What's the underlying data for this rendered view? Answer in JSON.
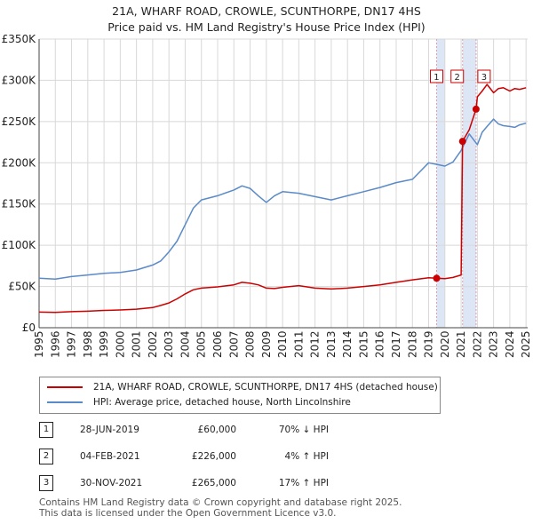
{
  "title_line1": "21A, WHARF ROAD, CROWLE, SCUNTHORPE, DN17 4HS",
  "title_line2": "Price paid vs. HM Land Registry's House Price Index (HPI)",
  "chart_data": {
    "type": "line",
    "xlim": [
      1995,
      2025.1
    ],
    "ylim": [
      0,
      350000
    ],
    "x_ticks": [
      1995,
      1996,
      1997,
      1998,
      1999,
      2000,
      2001,
      2002,
      2003,
      2004,
      2005,
      2006,
      2007,
      2008,
      2009,
      2010,
      2011,
      2012,
      2013,
      2014,
      2015,
      2016,
      2017,
      2018,
      2019,
      2020,
      2021,
      2022,
      2023,
      2024,
      2025
    ],
    "y_ticks": [
      0,
      50000,
      100000,
      150000,
      200000,
      250000,
      300000,
      350000
    ],
    "y_tick_labels": [
      "£0",
      "£50K",
      "£100K",
      "£150K",
      "£200K",
      "£250K",
      "£300K",
      "£350K"
    ],
    "colors": {
      "property": "#cc0000",
      "hpi": "#5a8ac8",
      "shade": "#dde6f5",
      "marker_line": "#e0a0a8"
    },
    "shaded_periods": [
      [
        2019.49,
        2020.0
      ],
      [
        2021.09,
        2021.92
      ]
    ],
    "series": [
      {
        "name": "21A, WHARF ROAD, CROWLE, SCUNTHORPE, DN17 4HS (detached house)",
        "color": "#cc0000",
        "x": [
          1995.0,
          1996.0,
          1997.0,
          1998.0,
          1999.0,
          2000.0,
          2001.0,
          2002.0,
          2002.5,
          2003.0,
          2003.5,
          2004.0,
          2004.5,
          2005.0,
          2006.0,
          2007.0,
          2007.5,
          2008.0,
          2008.5,
          2009.0,
          2009.5,
          2010.0,
          2011.0,
          2012.0,
          2013.0,
          2014.0,
          2015.0,
          2016.0,
          2017.0,
          2018.0,
          2019.0,
          2019.49,
          2020.0,
          2020.5,
          2021.0,
          2021.09,
          2021.5,
          2021.92,
          2022.0,
          2022.3,
          2022.6,
          2023.0,
          2023.3,
          2023.6,
          2024.0,
          2024.3,
          2024.6,
          2025.0
        ],
        "y": [
          19000,
          18500,
          19500,
          20000,
          21000,
          21500,
          22500,
          24500,
          27000,
          30000,
          35000,
          41000,
          46000,
          48000,
          49500,
          52000,
          55000,
          54000,
          52000,
          48000,
          47500,
          49000,
          51000,
          48000,
          47000,
          48000,
          50000,
          52000,
          55000,
          58000,
          60500,
          60000,
          59500,
          61000,
          64000,
          226000,
          240000,
          265000,
          280000,
          287000,
          295000,
          285000,
          290000,
          291000,
          287000,
          290000,
          289000,
          291000
        ]
      },
      {
        "name": "HPI: Average price, detached house, North Lincolnshire",
        "color": "#5a8ac8",
        "x": [
          1995.0,
          1996.0,
          1997.0,
          1998.0,
          1999.0,
          2000.0,
          2001.0,
          2002.0,
          2002.5,
          2003.0,
          2003.5,
          2004.0,
          2004.5,
          2005.0,
          2006.0,
          2007.0,
          2007.5,
          2008.0,
          2008.5,
          2009.0,
          2009.5,
          2010.0,
          2011.0,
          2012.0,
          2013.0,
          2014.0,
          2015.0,
          2016.0,
          2017.0,
          2018.0,
          2018.5,
          2019.0,
          2019.5,
          2020.0,
          2020.5,
          2021.0,
          2021.5,
          2022.0,
          2022.3,
          2022.6,
          2023.0,
          2023.3,
          2023.6,
          2024.0,
          2024.3,
          2024.6,
          2025.0
        ],
        "y": [
          60000,
          59000,
          62000,
          64000,
          66000,
          67000,
          70000,
          76000,
          81000,
          92000,
          105000,
          125000,
          145000,
          155000,
          160000,
          167000,
          172000,
          169000,
          160000,
          152000,
          160000,
          165000,
          163000,
          159000,
          155000,
          160000,
          165000,
          170000,
          176000,
          180000,
          190000,
          200000,
          198000,
          196000,
          201000,
          215000,
          235000,
          222000,
          237000,
          244000,
          253000,
          247000,
          245000,
          244000,
          243000,
          246000,
          248000
        ]
      }
    ],
    "sale_markers": [
      {
        "label": "1",
        "x": 2019.49,
        "y": 60000
      },
      {
        "label": "2",
        "x": 2021.09,
        "y": 226000
      },
      {
        "label": "3",
        "x": 2021.92,
        "y": 265000
      }
    ]
  },
  "legend": {
    "property_label": "21A, WHARF ROAD, CROWLE, SCUNTHORPE, DN17 4HS (detached house)",
    "hpi_label": "HPI: Average price, detached house, North Lincolnshire"
  },
  "sales": [
    {
      "num": "1",
      "date": "28-JUN-2019",
      "price": "£60,000",
      "hpi": "70% ↓ HPI"
    },
    {
      "num": "2",
      "date": "04-FEB-2021",
      "price": "£226,000",
      "hpi": "4% ↑ HPI"
    },
    {
      "num": "3",
      "date": "30-NOV-2021",
      "price": "£265,000",
      "hpi": "17% ↑ HPI"
    }
  ],
  "footer_line1": "Contains HM Land Registry data © Crown copyright and database right 2025.",
  "footer_line2": "This data is licensed under the Open Government Licence v3.0."
}
